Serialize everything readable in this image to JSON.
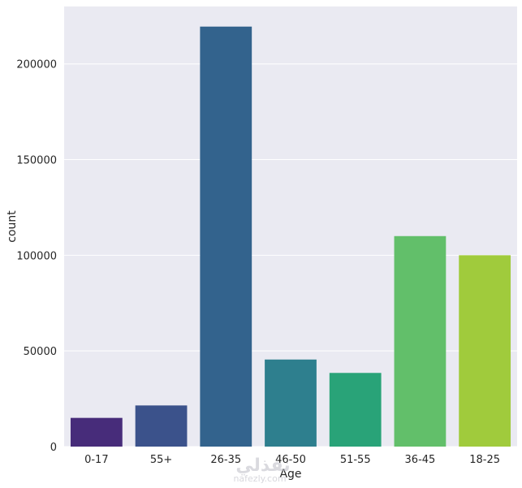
{
  "chart_data": {
    "type": "bar",
    "categories": [
      "0-17",
      "55+",
      "26-35",
      "46-50",
      "51-55",
      "36-45",
      "18-25"
    ],
    "values": [
      15000,
      21500,
      219500,
      45500,
      38500,
      110000,
      100000
    ],
    "colors": [
      "#472c7a",
      "#3b528b",
      "#33638d",
      "#2e7f8e",
      "#29a378",
      "#62bf6a",
      "#a0cb3c"
    ],
    "xlabel": "Age",
    "ylabel": "count",
    "ylim": [
      0,
      230000
    ],
    "yticks": [
      0,
      50000,
      100000,
      150000,
      200000
    ],
    "ytick_labels": [
      "0",
      "50000",
      "100000",
      "150000",
      "200000"
    ],
    "grid": true,
    "background": "#eaeaf2"
  },
  "watermark": {
    "arabic": "نفذلي",
    "latin": "nafezly.com"
  }
}
